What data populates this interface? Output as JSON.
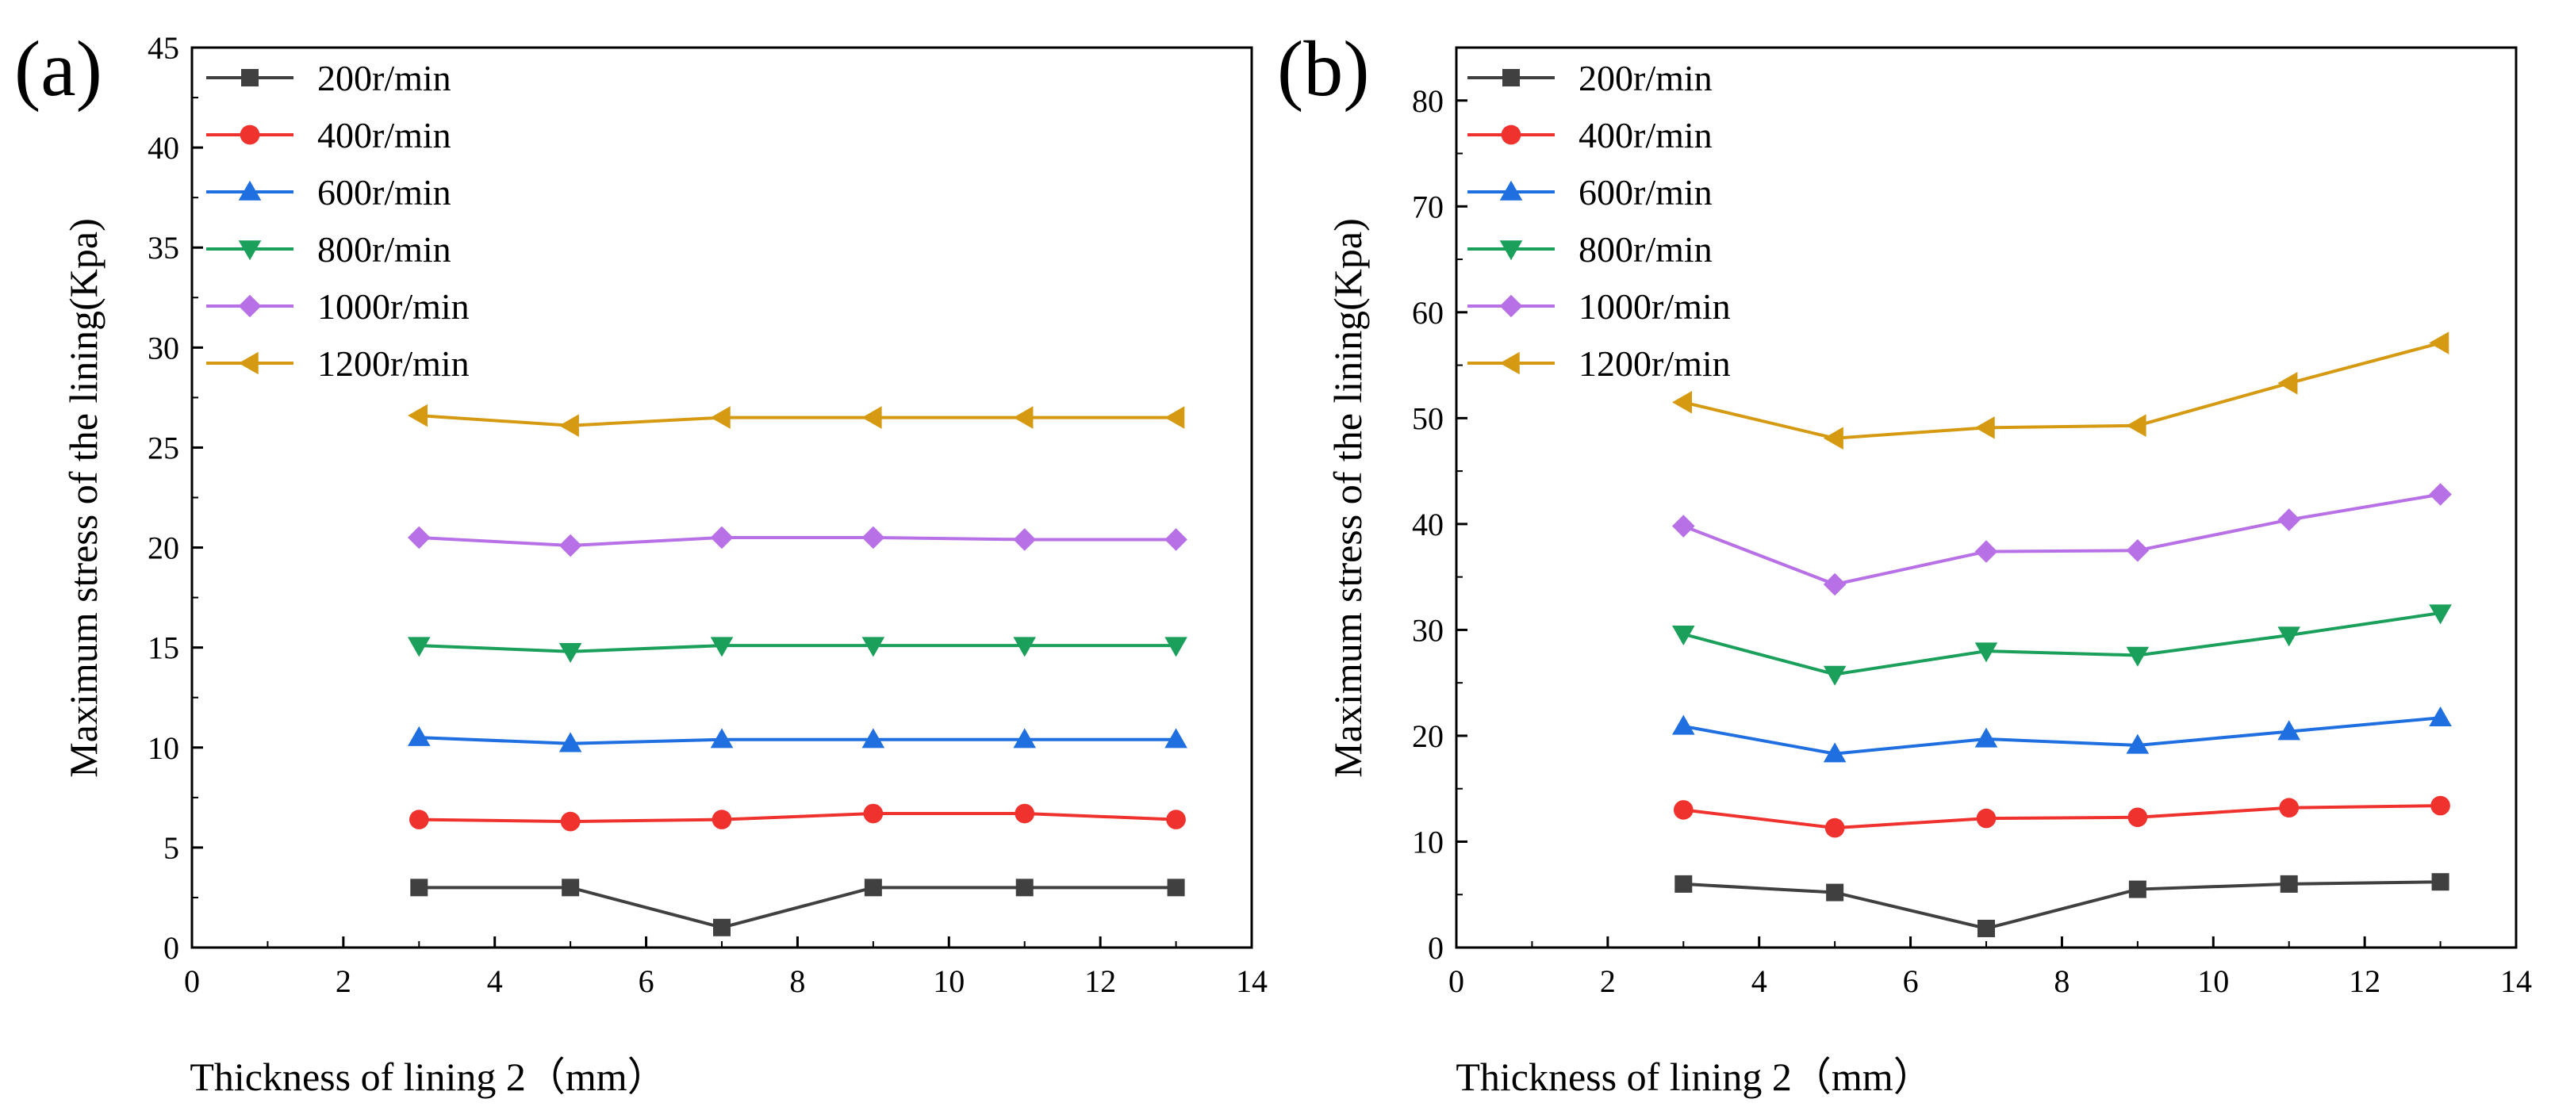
{
  "chart_data": [
    {
      "type": "line",
      "panel_label": "(a)",
      "title": "",
      "xlabel": "Thickness of lining 2（mm）",
      "ylabel": "Maximum stress of the lining(Kpa)",
      "xlim": [
        0,
        14
      ],
      "ylim": [
        0,
        45
      ],
      "xticks": [
        0,
        2,
        4,
        6,
        8,
        10,
        12,
        14
      ],
      "yticks": [
        0,
        5,
        10,
        15,
        20,
        25,
        30,
        35,
        40,
        45
      ],
      "x": [
        3,
        5,
        7,
        9,
        11,
        13
      ],
      "legend_position": "top-left",
      "series": [
        {
          "name": "200r/min",
          "color": "#404040",
          "marker": "square",
          "values": [
            3.0,
            3.0,
            1.0,
            3.0,
            3.0,
            3.0
          ]
        },
        {
          "name": "400r/min",
          "color": "#f0322e",
          "marker": "circle",
          "values": [
            6.4,
            6.3,
            6.4,
            6.7,
            6.7,
            6.4
          ]
        },
        {
          "name": "600r/min",
          "color": "#1f6fe0",
          "marker": "triangle-up",
          "values": [
            10.5,
            10.2,
            10.4,
            10.4,
            10.4,
            10.4
          ]
        },
        {
          "name": "800r/min",
          "color": "#1aa05a",
          "marker": "triangle-down",
          "values": [
            15.1,
            14.8,
            15.1,
            15.1,
            15.1,
            15.1
          ]
        },
        {
          "name": "1000r/min",
          "color": "#b870e6",
          "marker": "diamond",
          "values": [
            20.5,
            20.1,
            20.5,
            20.5,
            20.4,
            20.4
          ]
        },
        {
          "name": "1200r/min",
          "color": "#d69a12",
          "marker": "triangle-left",
          "values": [
            26.6,
            26.1,
            26.5,
            26.5,
            26.5,
            26.5
          ]
        }
      ]
    },
    {
      "type": "line",
      "panel_label": "(b)",
      "title": "",
      "xlabel": "Thickness of lining 2（mm）",
      "ylabel": "Maximum stress of the lining(Kpa)",
      "xlim": [
        0,
        14
      ],
      "ylim": [
        0,
        85
      ],
      "xticks": [
        0,
        2,
        4,
        6,
        8,
        10,
        12,
        14
      ],
      "yticks": [
        0,
        10,
        20,
        30,
        40,
        50,
        60,
        70,
        80
      ],
      "x": [
        3,
        5,
        7,
        9,
        11,
        13
      ],
      "legend_position": "top-left",
      "series": [
        {
          "name": "200r/min",
          "color": "#404040",
          "marker": "square",
          "values": [
            6.0,
            5.2,
            1.8,
            5.5,
            6.0,
            6.2
          ]
        },
        {
          "name": "400r/min",
          "color": "#f0322e",
          "marker": "circle",
          "values": [
            13.0,
            11.3,
            12.2,
            12.3,
            13.2,
            13.4
          ]
        },
        {
          "name": "600r/min",
          "color": "#1f6fe0",
          "marker": "triangle-up",
          "values": [
            20.9,
            18.3,
            19.7,
            19.1,
            20.4,
            21.7
          ]
        },
        {
          "name": "800r/min",
          "color": "#1aa05a",
          "marker": "triangle-down",
          "values": [
            29.6,
            25.8,
            28.0,
            27.6,
            29.5,
            31.6
          ]
        },
        {
          "name": "1000r/min",
          "color": "#b870e6",
          "marker": "diamond",
          "values": [
            39.8,
            34.3,
            37.4,
            37.5,
            40.4,
            42.8
          ]
        },
        {
          "name": "1200r/min",
          "color": "#d69a12",
          "marker": "triangle-left",
          "values": [
            51.5,
            48.1,
            49.1,
            49.3,
            53.3,
            57.1
          ]
        }
      ]
    }
  ]
}
